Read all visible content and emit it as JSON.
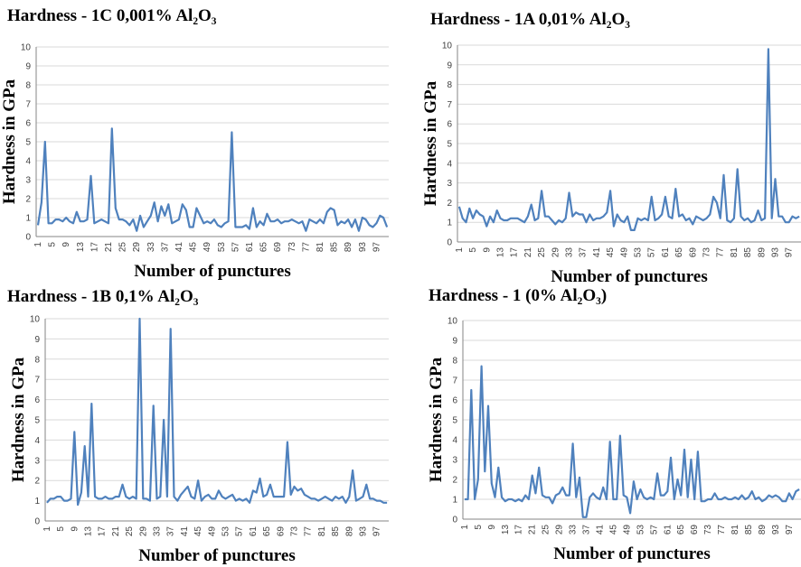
{
  "chart_data": [
    {
      "type": "line",
      "title": "Hardness - 1C 0,001% Al₂O₃",
      "xlabel": "Number of punctures",
      "ylabel": "Hardness in GPa",
      "ylim": [
        0,
        10
      ],
      "yticks": [
        "0",
        "1",
        "2",
        "3",
        "4",
        "5",
        "6",
        "7",
        "8",
        "9",
        "10"
      ],
      "xtick_step": 4,
      "grid": true,
      "series": [
        {
          "color": "#4f81bd",
          "values": [
            0.6,
            1.8,
            5.0,
            0.7,
            0.7,
            0.9,
            0.9,
            0.8,
            1.0,
            0.8,
            0.7,
            1.3,
            0.8,
            0.8,
            0.9,
            3.2,
            0.7,
            0.8,
            0.9,
            0.8,
            0.7,
            5.7,
            1.5,
            0.9,
            0.9,
            0.8,
            0.6,
            0.9,
            0.3,
            1.1,
            0.5,
            0.8,
            1.1,
            1.8,
            0.8,
            1.6,
            1.1,
            1.7,
            0.7,
            0.8,
            0.9,
            1.7,
            1.4,
            0.5,
            0.5,
            1.5,
            1.1,
            0.7,
            0.8,
            0.7,
            0.9,
            0.6,
            0.5,
            0.7,
            0.8,
            5.5,
            0.5,
            0.5,
            0.5,
            0.6,
            0.4,
            1.5,
            0.5,
            0.8,
            0.6,
            1.2,
            0.8,
            0.8,
            0.9,
            0.7,
            0.8,
            0.8,
            0.9,
            0.8,
            0.7,
            0.8,
            0.3,
            0.9,
            0.8,
            0.7,
            0.9,
            0.7,
            1.3,
            1.5,
            1.4,
            0.6,
            0.8,
            0.7,
            0.9,
            0.5,
            0.9,
            0.3,
            1.0,
            0.9,
            0.6,
            0.5,
            0.7,
            1.1,
            1.0,
            0.5
          ]
        }
      ]
    },
    {
      "type": "line",
      "title": "Hardness - 1A 0,01% Al₂O₃",
      "xlabel": "Number of punctures",
      "ylabel": "Hardness in GPa",
      "ylim": [
        0,
        10
      ],
      "yticks": [
        "0",
        "1",
        "2",
        "3",
        "4",
        "5",
        "6",
        "7",
        "8",
        "9",
        "10"
      ],
      "xtick_step": 4,
      "grid": true,
      "series": [
        {
          "color": "#4f81bd",
          "values": [
            1.8,
            1.2,
            1.0,
            1.7,
            1.2,
            1.6,
            1.4,
            1.3,
            0.8,
            1.3,
            1.0,
            1.6,
            1.2,
            1.1,
            1.1,
            1.2,
            1.2,
            1.2,
            1.1,
            1.0,
            1.3,
            1.9,
            1.1,
            1.2,
            2.6,
            1.3,
            1.3,
            1.1,
            0.9,
            1.1,
            1.0,
            1.2,
            2.5,
            1.3,
            1.5,
            1.4,
            1.4,
            1.0,
            1.4,
            1.1,
            1.2,
            1.2,
            1.3,
            1.5,
            2.6,
            0.8,
            1.4,
            1.1,
            1.0,
            1.3,
            0.6,
            0.6,
            1.2,
            1.1,
            1.2,
            1.1,
            2.3,
            1.1,
            1.2,
            1.4,
            2.3,
            1.3,
            1.2,
            2.7,
            1.3,
            1.4,
            1.1,
            1.2,
            0.9,
            1.3,
            1.2,
            1.1,
            1.2,
            1.4,
            2.3,
            2.0,
            1.2,
            3.4,
            1.1,
            1.0,
            1.2,
            3.7,
            1.3,
            1.1,
            1.2,
            1.0,
            1.1,
            1.6,
            1.1,
            1.2,
            9.8,
            1.2,
            3.2,
            1.3,
            1.3,
            1.0,
            1.0,
            1.3,
            1.2,
            1.3
          ]
        }
      ]
    },
    {
      "type": "line",
      "title": "Hardness - 1B 0,1% Al₂O₃",
      "xlabel": "Number of punctures",
      "ylabel": "Hardness in GPa",
      "ylim": [
        0,
        10
      ],
      "yticks": [
        "0",
        "1",
        "2",
        "3",
        "4",
        "5",
        "6",
        "7",
        "8",
        "9",
        "10"
      ],
      "xtick_step": 4,
      "grid": true,
      "series": [
        {
          "color": "#4f81bd",
          "values": [
            0.9,
            1.1,
            1.1,
            1.2,
            1.2,
            1.0,
            1.0,
            1.1,
            4.4,
            0.8,
            1.4,
            3.7,
            1.2,
            5.8,
            1.2,
            1.1,
            1.1,
            1.2,
            1.1,
            1.1,
            1.2,
            1.2,
            1.8,
            1.2,
            1.1,
            1.2,
            1.1,
            10.0,
            1.1,
            1.1,
            1.0,
            5.7,
            1.1,
            1.2,
            5.0,
            1.2,
            9.5,
            1.2,
            1.0,
            1.3,
            1.5,
            1.7,
            1.2,
            1.1,
            2.0,
            1.0,
            1.2,
            1.3,
            1.1,
            1.1,
            1.5,
            1.2,
            1.1,
            1.2,
            1.3,
            1.0,
            1.1,
            1.0,
            1.1,
            0.9,
            1.5,
            1.4,
            2.1,
            1.2,
            1.3,
            1.8,
            1.2,
            1.2,
            1.2,
            1.2,
            3.9,
            1.3,
            1.7,
            1.5,
            1.6,
            1.3,
            1.2,
            1.1,
            1.1,
            1.0,
            1.1,
            1.2,
            1.1,
            1.0,
            1.2,
            1.1,
            1.2,
            0.9,
            1.2,
            2.5,
            1.0,
            1.1,
            1.2,
            1.8,
            1.1,
            1.1,
            1.0,
            1.0,
            0.9,
            0.9
          ]
        }
      ]
    },
    {
      "type": "line",
      "title": "Hardness - 1  (0% Al₂O₃)",
      "xlabel": "Number of punctures",
      "ylabel": "Hardness in GPa",
      "ylim": [
        0,
        10
      ],
      "yticks": [
        "0",
        "1",
        "2",
        "3",
        "4",
        "5",
        "6",
        "7",
        "8",
        "9",
        "10"
      ],
      "xtick_step": 4,
      "grid": true,
      "series": [
        {
          "color": "#4f81bd",
          "values": [
            1.0,
            1.0,
            6.5,
            1.0,
            2.0,
            7.7,
            2.4,
            5.7,
            1.8,
            1.1,
            2.6,
            1.1,
            0.9,
            1.0,
            1.0,
            0.9,
            1.0,
            0.9,
            1.2,
            1.0,
            2.2,
            1.3,
            2.6,
            1.2,
            1.1,
            1.1,
            0.8,
            1.2,
            1.3,
            1.6,
            1.2,
            1.2,
            3.8,
            1.1,
            2.1,
            0.1,
            0.1,
            1.1,
            1.3,
            1.1,
            1.0,
            1.6,
            1.0,
            3.9,
            1.0,
            1.0,
            4.2,
            1.2,
            1.1,
            0.3,
            1.9,
            1.0,
            1.5,
            1.1,
            1.0,
            1.1,
            1.0,
            2.3,
            1.2,
            1.2,
            1.4,
            3.1,
            1.0,
            2.0,
            1.2,
            3.5,
            1.1,
            3.0,
            1.0,
            3.4,
            0.9,
            0.9,
            1.0,
            1.0,
            1.3,
            1.0,
            1.0,
            1.1,
            1.0,
            1.0,
            1.1,
            1.0,
            1.2,
            1.0,
            1.1,
            1.4,
            1.0,
            1.1,
            0.9,
            1.0,
            1.2,
            1.1,
            1.2,
            1.1,
            0.9,
            0.9,
            1.3,
            1.0,
            1.4,
            1.5
          ]
        }
      ]
    }
  ]
}
